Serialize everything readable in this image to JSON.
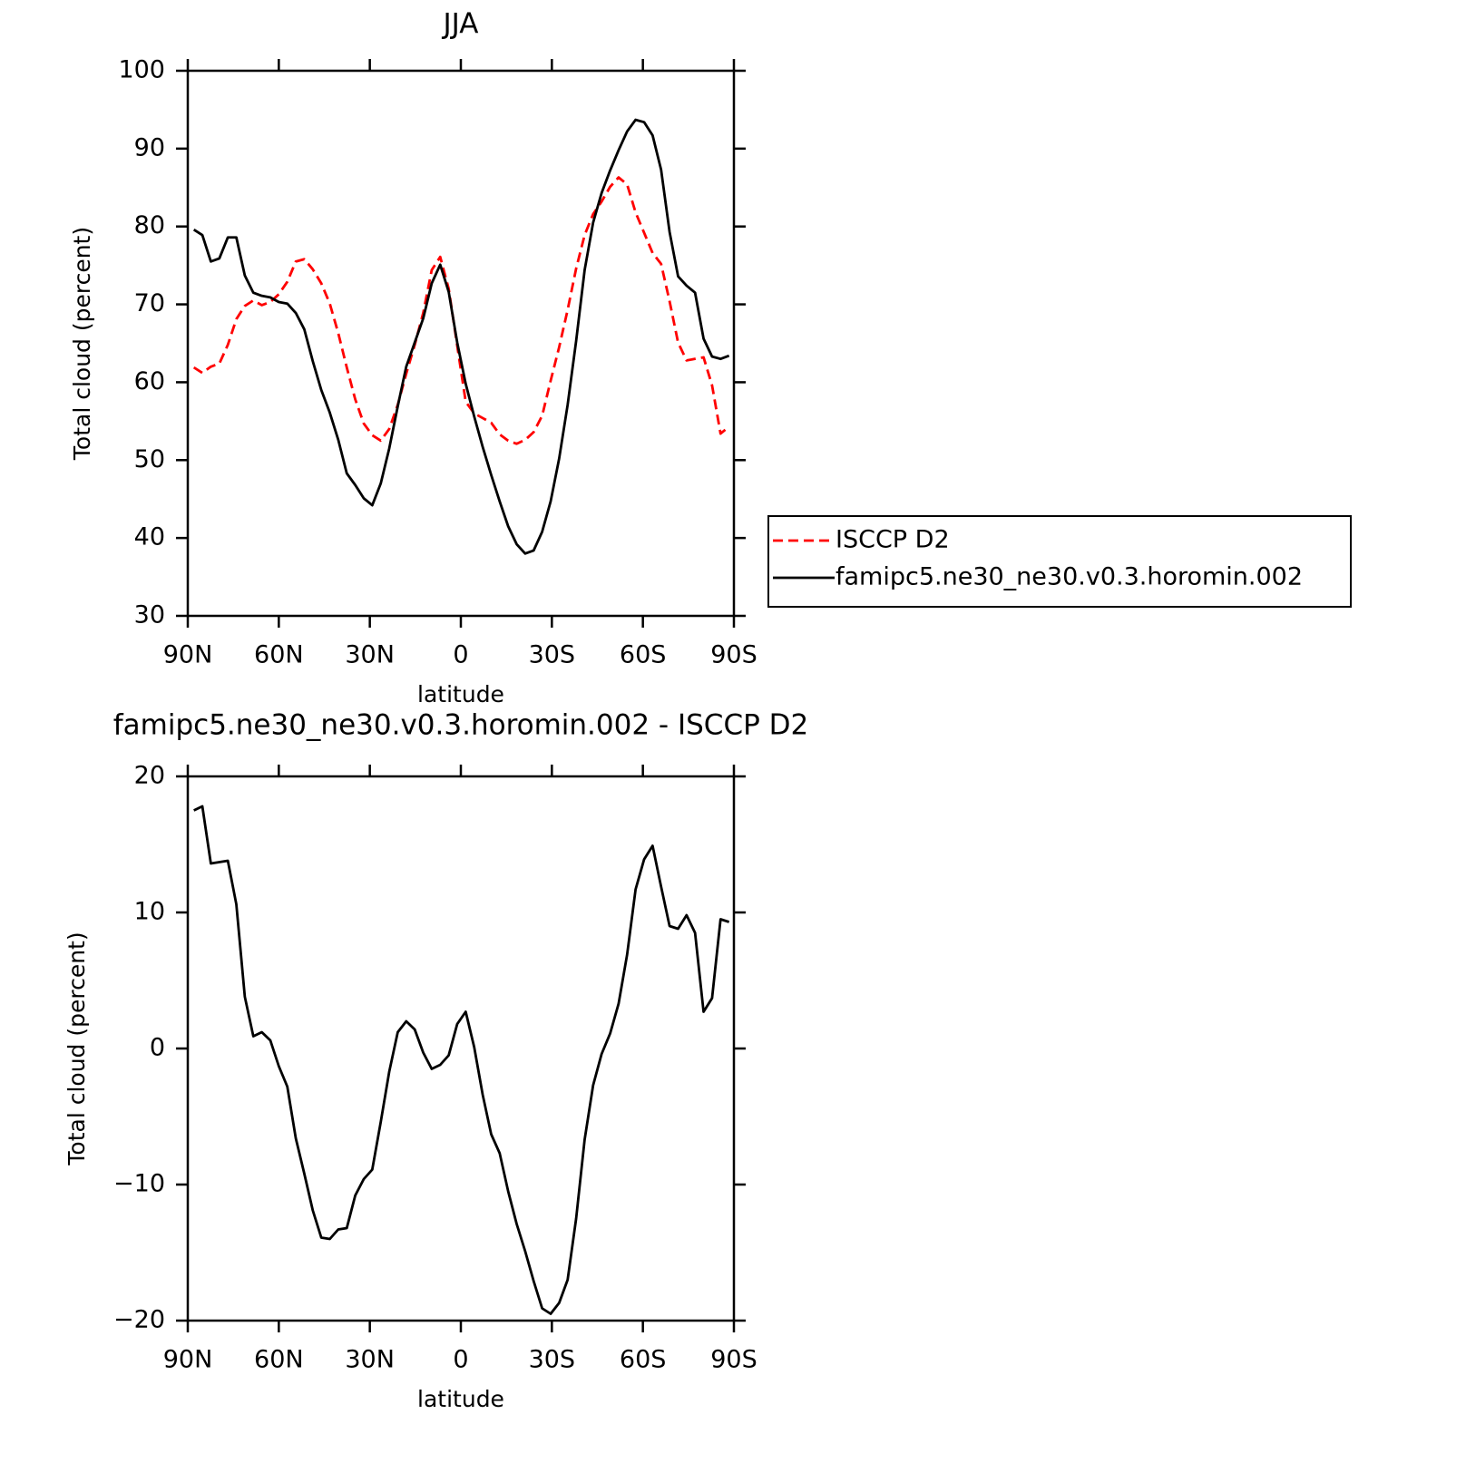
{
  "chart_data": [
    {
      "type": "line",
      "title": "JJA",
      "x_label": "latitude",
      "y_label": "Total cloud (percent)",
      "x": [
        88.0,
        85.2,
        82.4,
        79.6,
        76.8,
        74.0,
        71.2,
        68.4,
        65.6,
        62.8,
        60.0,
        57.2,
        54.4,
        51.6,
        48.8,
        46.0,
        43.2,
        40.4,
        37.6,
        34.8,
        32.0,
        29.2,
        26.4,
        23.6,
        20.8,
        18.0,
        15.2,
        12.4,
        9.6,
        6.8,
        4.0,
        1.2,
        -1.6,
        -4.4,
        -7.2,
        -10.0,
        -12.8,
        -15.6,
        -18.4,
        -21.2,
        -24.0,
        -26.8,
        -29.6,
        -32.4,
        -35.2,
        -38.0,
        -40.8,
        -43.6,
        -46.4,
        -49.2,
        -52.0,
        -54.8,
        -57.6,
        -60.4,
        -63.2,
        -66.0,
        -68.8,
        -71.6,
        -74.4,
        -77.2,
        -80.0,
        -82.8,
        -85.6,
        -88.4
      ],
      "series": [
        {
          "name": "ISCCP D2",
          "color": "#ff0000",
          "linestyle": "dashed",
          "values": [
            61.9,
            61.2,
            62.0,
            62.4,
            64.8,
            68.1,
            69.8,
            70.5,
            69.9,
            70.3,
            71.3,
            72.9,
            75.5,
            75.8,
            74.5,
            72.7,
            70.1,
            66.3,
            61.9,
            57.8,
            54.7,
            53.2,
            52.5,
            54.0,
            57.1,
            61.1,
            64.8,
            68.9,
            74.4,
            76.1,
            72.0,
            64.7,
            57.5,
            56.0,
            55.4,
            54.8,
            53.3,
            52.5,
            52.1,
            52.6,
            53.6,
            55.7,
            60.2,
            64.5,
            69.3,
            74.6,
            78.9,
            81.6,
            83.2,
            85.1,
            86.3,
            85.4,
            81.8,
            79.2,
            76.6,
            75.2,
            70.4,
            65.1,
            62.8,
            63.0,
            63.2,
            59.6,
            53.4,
            54.3
          ]
        },
        {
          "name": "famipc5.ne30_ne30.v0.3.horomin.002",
          "color": "#000000",
          "linestyle": "solid",
          "values": [
            79.6,
            78.9,
            75.5,
            75.9,
            78.6,
            78.6,
            73.7,
            71.5,
            71.1,
            70.9,
            70.3,
            70.1,
            68.9,
            66.8,
            62.7,
            59.0,
            56.1,
            52.6,
            48.3,
            46.8,
            45.1,
            44.2,
            47.0,
            51.5,
            56.9,
            62.0,
            65.1,
            68.2,
            72.7,
            75.1,
            71.6,
            65.1,
            59.8,
            55.6,
            51.7,
            48.1,
            44.7,
            41.5,
            39.2,
            38.0,
            38.4,
            40.8,
            44.7,
            50.2,
            57.1,
            65.3,
            74.4,
            80.5,
            84.3,
            87.2,
            89.8,
            92.2,
            93.7,
            93.4,
            91.7,
            87.3,
            79.3,
            73.6,
            72.4,
            71.5,
            65.6,
            63.3,
            63.0,
            63.4
          ]
        }
      ],
      "xlim": [
        90,
        -90
      ],
      "xticks": [
        {
          "value": 90,
          "label": "90N"
        },
        {
          "value": 60,
          "label": "60N"
        },
        {
          "value": 30,
          "label": "30N"
        },
        0,
        {
          "value": -30,
          "label": "30S"
        },
        {
          "value": -60,
          "label": "60S"
        },
        {
          "value": -90,
          "label": "90S"
        }
      ],
      "ylim": [
        30,
        100
      ],
      "yticks": [
        30,
        40,
        50,
        60,
        70,
        80,
        90,
        100
      ]
    },
    {
      "type": "line",
      "title": "famipc5.ne30_ne30.v0.3.horomin.002 - ISCCP D2",
      "x_label": "latitude",
      "y_label": "Total cloud (percent)",
      "x": [
        88.0,
        85.2,
        82.4,
        79.6,
        76.8,
        74.0,
        71.2,
        68.4,
        65.6,
        62.8,
        60.0,
        57.2,
        54.4,
        51.6,
        48.8,
        46.0,
        43.2,
        40.4,
        37.6,
        34.8,
        32.0,
        29.2,
        26.4,
        23.6,
        20.8,
        18.0,
        15.2,
        12.4,
        9.6,
        6.8,
        4.0,
        1.2,
        -1.6,
        -4.4,
        -7.2,
        -10.0,
        -12.8,
        -15.6,
        -18.4,
        -21.2,
        -24.0,
        -26.8,
        -29.6,
        -32.4,
        -35.2,
        -38.0,
        -40.8,
        -43.6,
        -46.4,
        -49.2,
        -52.0,
        -54.8,
        -57.6,
        -60.4,
        -63.2,
        -66.0,
        -68.8,
        -71.6,
        -74.4,
        -77.2,
        -80.0,
        -82.8,
        -85.6,
        -88.4
      ],
      "color": "#000000",
      "values": [
        17.5,
        17.8,
        13.6,
        13.7,
        13.8,
        10.6,
        3.8,
        0.9,
        1.2,
        0.6,
        -1.3,
        -2.8,
        -6.6,
        -9.2,
        -11.9,
        -13.9,
        -14.0,
        -13.3,
        -13.2,
        -10.8,
        -9.6,
        -8.9,
        -5.4,
        -1.7,
        1.2,
        2.0,
        1.4,
        -0.3,
        -1.5,
        -1.2,
        -0.5,
        1.8,
        2.7,
        0.1,
        -3.4,
        -6.3,
        -7.7,
        -10.5,
        -12.9,
        -14.9,
        -17.1,
        -19.1,
        -19.5,
        -18.7,
        -17.0,
        -12.5,
        -6.7,
        -2.7,
        -0.4,
        1.1,
        3.3,
        6.9,
        11.7,
        13.9,
        14.9,
        11.9,
        9.0,
        8.8,
        9.8,
        8.5,
        2.7,
        3.7,
        9.5,
        9.3
      ],
      "xlim": [
        90,
        -90
      ],
      "xticks": [
        {
          "value": 90,
          "label": "90N"
        },
        {
          "value": 60,
          "label": "60N"
        },
        {
          "value": 30,
          "label": "30N"
        },
        0,
        {
          "value": -30,
          "label": "30S"
        },
        {
          "value": -60,
          "label": "60S"
        },
        {
          "value": -90,
          "label": "90S"
        }
      ],
      "ylim": [
        -20,
        20
      ],
      "yticks": [
        -20,
        -10,
        0,
        10,
        20
      ]
    }
  ]
}
